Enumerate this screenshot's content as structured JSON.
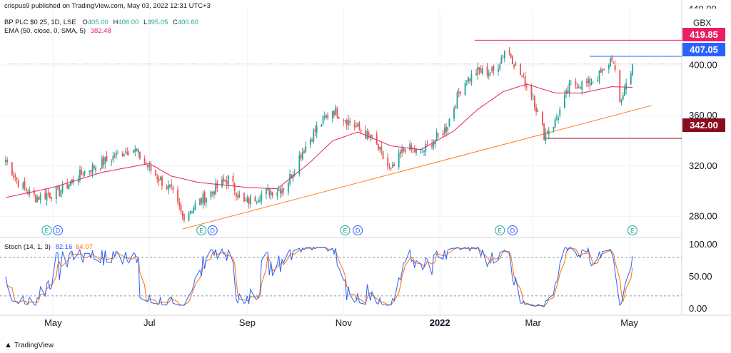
{
  "header": {
    "publisher": "crispus9 published on TradingView.com, May 03, 2022 12:31 UTC+3",
    "symbol_line": "BP PLC $0.25, 1D, LSE",
    "ohlc": {
      "o_label": "O",
      "o": "405.00",
      "h_label": "H",
      "h": "406.00",
      "l_label": "L",
      "l": "395.05",
      "c_label": "C",
      "c": "400.60"
    },
    "ema_label": "EMA (50, close, 0, SMA, 5)",
    "ema_value": "382.48",
    "stoch_label": "Stoch (14, 1, 3)",
    "stoch_k": "82.16",
    "stoch_d": "64.07",
    "currency": "GBX",
    "top_tick": "440.00"
  },
  "price_labels": [
    {
      "value": "419.85",
      "color": "#e91e63"
    },
    {
      "value": "407.05",
      "color": "#2962ff"
    },
    {
      "value": "342.00",
      "color": "#880e1f"
    }
  ],
  "footer": {
    "brand": "TradingView"
  },
  "colors": {
    "up": "#26a69a",
    "down": "#ef5350",
    "ema": "#e91e63",
    "trend": "#ff7f2a",
    "k": "#2962ff",
    "d": "#ff6d00"
  },
  "chart_data": [
    {
      "type": "candlestick",
      "title": "BP PLC $0.25, 1D, LSE",
      "ylim": [
        265,
        445
      ],
      "yticks": [
        280,
        320,
        360,
        400
      ],
      "ytick_labels": [
        "280.00",
        "320.00",
        "360.00",
        "400.00"
      ],
      "x_labels": [
        "May",
        "Jul",
        "Sep",
        "Nov",
        "2022",
        "Mar",
        "May"
      ],
      "x_label_dates": [
        "2021-05-01",
        "2021-07-01",
        "2021-09-01",
        "2021-11-01",
        "2022-01-01",
        "2022-03-01",
        "2022-05-01"
      ],
      "date_range": [
        "2021-04-01",
        "2022-05-03"
      ],
      "close_anchors": [
        [
          "2021-04-01",
          325
        ],
        [
          "2021-04-10",
          305
        ],
        [
          "2021-04-20",
          295
        ],
        [
          "2021-05-05",
          300
        ],
        [
          "2021-05-20",
          315
        ],
        [
          "2021-06-05",
          325
        ],
        [
          "2021-06-20",
          335
        ],
        [
          "2021-07-01",
          318
        ],
        [
          "2021-07-15",
          300
        ],
        [
          "2021-07-22",
          280
        ],
        [
          "2021-08-05",
          295
        ],
        [
          "2021-08-20",
          310
        ],
        [
          "2021-08-30",
          290
        ],
        [
          "2021-09-10",
          298
        ],
        [
          "2021-09-25",
          303
        ],
        [
          "2021-10-05",
          330
        ],
        [
          "2021-10-15",
          350
        ],
        [
          "2021-10-25",
          365
        ],
        [
          "2021-11-05",
          355
        ],
        [
          "2021-11-20",
          340
        ],
        [
          "2021-12-01",
          315
        ],
        [
          "2021-12-10",
          335
        ],
        [
          "2021-12-20",
          330
        ],
        [
          "2022-01-05",
          350
        ],
        [
          "2022-01-15",
          385
        ],
        [
          "2022-01-25",
          395
        ],
        [
          "2022-02-05",
          395
        ],
        [
          "2022-02-12",
          415
        ],
        [
          "2022-02-20",
          395
        ],
        [
          "2022-03-01",
          375
        ],
        [
          "2022-03-08",
          345
        ],
        [
          "2022-03-15",
          355
        ],
        [
          "2022-03-25",
          385
        ],
        [
          "2022-04-05",
          385
        ],
        [
          "2022-04-15",
          395
        ],
        [
          "2022-04-20",
          407
        ],
        [
          "2022-04-25",
          370
        ],
        [
          "2022-05-03",
          400.6
        ]
      ],
      "ema_anchors": [
        [
          "2021-04-01",
          295
        ],
        [
          "2021-05-01",
          303
        ],
        [
          "2021-06-01",
          315
        ],
        [
          "2021-07-01",
          322
        ],
        [
          "2021-07-15",
          312
        ],
        [
          "2021-08-01",
          307
        ],
        [
          "2021-09-01",
          303
        ],
        [
          "2021-09-20",
          302
        ],
        [
          "2021-10-10",
          322
        ],
        [
          "2021-10-25",
          340
        ],
        [
          "2021-11-10",
          347
        ],
        [
          "2021-12-01",
          336
        ],
        [
          "2021-12-20",
          333
        ],
        [
          "2022-01-10",
          348
        ],
        [
          "2022-01-25",
          365
        ],
        [
          "2022-02-10",
          379
        ],
        [
          "2022-02-25",
          385
        ],
        [
          "2022-03-15",
          378
        ],
        [
          "2022-04-01",
          378
        ],
        [
          "2022-04-20",
          383
        ],
        [
          "2022-05-03",
          382.48
        ]
      ],
      "horizontal_levels": [
        {
          "value": 419.85,
          "from": "2022-01-23",
          "color": "#e91e63"
        },
        {
          "value": 407.05,
          "from": "2022-04-06",
          "color": "#2962ff"
        },
        {
          "value": 342.0,
          "from": "2022-03-08",
          "color": "#880e1f"
        },
        {
          "value": 401,
          "from": "2021-04-01",
          "color": "#f48fb1",
          "dotted": true
        }
      ],
      "trendline": {
        "from": [
          "2021-07-22",
          270
        ],
        "to": [
          "2022-05-15",
          368
        ],
        "color": "#ff7f2a"
      },
      "events": [
        {
          "date": "2021-04-27",
          "label": "E"
        },
        {
          "date": "2021-05-04",
          "label": "D"
        },
        {
          "date": "2021-08-03",
          "label": "E"
        },
        {
          "date": "2021-08-10",
          "label": "D"
        },
        {
          "date": "2021-11-02",
          "label": "E"
        },
        {
          "date": "2021-11-10",
          "label": "D"
        },
        {
          "date": "2022-02-08",
          "label": "E"
        },
        {
          "date": "2022-02-16",
          "label": "D"
        },
        {
          "date": "2022-05-03",
          "label": "E"
        }
      ]
    },
    {
      "type": "line",
      "title": "Stoch (14, 1, 3)",
      "ylim": [
        -8,
        108
      ],
      "yticks": [
        0,
        50,
        100
      ],
      "ytick_labels": [
        "0.00",
        "50.00",
        "100.00"
      ],
      "levels": [
        80,
        20
      ],
      "series": [
        {
          "name": "%K",
          "color": "#2962ff",
          "last": 82.16
        },
        {
          "name": "%D",
          "color": "#ff6d00",
          "last": 64.07
        }
      ]
    }
  ]
}
